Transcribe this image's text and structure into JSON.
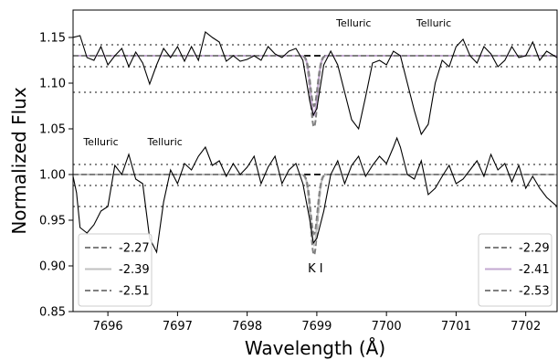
{
  "chart_data": {
    "type": "line",
    "xlabel": "Wavelength (Å)",
    "ylabel": "Normalized Flux",
    "xlim": [
      7695.5,
      7702.45
    ],
    "ylim": [
      0.85,
      1.18
    ],
    "x_ticks": [
      7696,
      7697,
      7698,
      7699,
      7700,
      7701,
      7702
    ],
    "x_tick_labels": [
      "7696",
      "7697",
      "7698",
      "7699",
      "7700",
      "7701",
      "7702"
    ],
    "y_ticks": [
      0.85,
      0.9,
      0.95,
      1.0,
      1.05,
      1.1,
      1.15
    ],
    "y_tick_labels": [
      "0.85",
      "0.90",
      "0.95",
      "1.00",
      "1.05",
      "1.10",
      "1.15"
    ],
    "annotations": [
      {
        "text": "Telluric",
        "x": 7699.53,
        "y": 1.162
      },
      {
        "text": "Telluric",
        "x": 7700.68,
        "y": 1.162
      },
      {
        "text": "Telluric",
        "x": 7695.9,
        "y": 1.032
      },
      {
        "text": "Telluric",
        "x": 7696.82,
        "y": 1.032
      },
      {
        "text": "K I",
        "x": 7698.98,
        "y": 0.893
      }
    ],
    "line_center": 7698.96,
    "upper_spectrum": {
      "continuum": 1.13,
      "dotted_levels": [
        1.142,
        1.118,
        1.09
      ],
      "points": [
        [
          7695.5,
          1.15
        ],
        [
          7695.6,
          1.152
        ],
        [
          7695.7,
          1.128
        ],
        [
          7695.8,
          1.125
        ],
        [
          7695.9,
          1.14
        ],
        [
          7696.0,
          1.12
        ],
        [
          7696.1,
          1.13
        ],
        [
          7696.2,
          1.138
        ],
        [
          7696.3,
          1.118
        ],
        [
          7696.4,
          1.134
        ],
        [
          7696.5,
          1.122
        ],
        [
          7696.6,
          1.099
        ],
        [
          7696.7,
          1.12
        ],
        [
          7696.8,
          1.138
        ],
        [
          7696.9,
          1.128
        ],
        [
          7697.0,
          1.14
        ],
        [
          7697.1,
          1.124
        ],
        [
          7697.2,
          1.14
        ],
        [
          7697.3,
          1.125
        ],
        [
          7697.4,
          1.156
        ],
        [
          7697.5,
          1.15
        ],
        [
          7697.6,
          1.145
        ],
        [
          7697.7,
          1.124
        ],
        [
          7697.8,
          1.13
        ],
        [
          7697.9,
          1.124
        ],
        [
          7698.0,
          1.126
        ],
        [
          7698.1,
          1.13
        ],
        [
          7698.2,
          1.125
        ],
        [
          7698.3,
          1.14
        ],
        [
          7698.4,
          1.132
        ],
        [
          7698.5,
          1.128
        ],
        [
          7698.6,
          1.135
        ],
        [
          7698.7,
          1.138
        ],
        [
          7698.8,
          1.125
        ],
        [
          7698.9,
          1.08
        ],
        [
          7698.95,
          1.065
        ],
        [
          7699.0,
          1.072
        ],
        [
          7699.1,
          1.12
        ],
        [
          7699.2,
          1.135
        ],
        [
          7699.3,
          1.12
        ],
        [
          7699.4,
          1.09
        ],
        [
          7699.5,
          1.06
        ],
        [
          7699.6,
          1.05
        ],
        [
          7699.7,
          1.085
        ],
        [
          7699.8,
          1.122
        ],
        [
          7699.9,
          1.125
        ],
        [
          7700.0,
          1.12
        ],
        [
          7700.1,
          1.135
        ],
        [
          7700.2,
          1.13
        ],
        [
          7700.3,
          1.1
        ],
        [
          7700.4,
          1.07
        ],
        [
          7700.5,
          1.044
        ],
        [
          7700.6,
          1.055
        ],
        [
          7700.7,
          1.1
        ],
        [
          7700.8,
          1.125
        ],
        [
          7700.9,
          1.118
        ],
        [
          7701.0,
          1.14
        ],
        [
          7701.1,
          1.148
        ],
        [
          7701.2,
          1.13
        ],
        [
          7701.3,
          1.122
        ],
        [
          7701.4,
          1.14
        ],
        [
          7701.5,
          1.132
        ],
        [
          7701.6,
          1.118
        ],
        [
          7701.7,
          1.125
        ],
        [
          7701.8,
          1.14
        ],
        [
          7701.9,
          1.128
        ],
        [
          7702.0,
          1.13
        ],
        [
          7702.1,
          1.145
        ],
        [
          7702.2,
          1.125
        ],
        [
          7702.3,
          1.135
        ],
        [
          7702.45,
          1.128
        ]
      ],
      "models": [
        {
          "name": "-2.29",
          "style": "dashed",
          "color": "#808080",
          "depth": 0.078
        },
        {
          "name": "-2.41",
          "style": "solid",
          "color": "#c3a8d1",
          "depth": 0.065
        },
        {
          "name": "-2.53",
          "style": "dashed",
          "color": "#808080",
          "depth": 0.055
        }
      ]
    },
    "lower_spectrum": {
      "continuum": 1.0,
      "dotted_levels": [
        1.011,
        0.988,
        0.965
      ],
      "points": [
        [
          7695.5,
          0.998
        ],
        [
          7695.55,
          0.98
        ],
        [
          7695.6,
          0.942
        ],
        [
          7695.7,
          0.936
        ],
        [
          7695.8,
          0.945
        ],
        [
          7695.9,
          0.96
        ],
        [
          7696.0,
          0.965
        ],
        [
          7696.1,
          1.01
        ],
        [
          7696.2,
          1.0
        ],
        [
          7696.3,
          1.022
        ],
        [
          7696.4,
          0.995
        ],
        [
          7696.5,
          0.99
        ],
        [
          7696.6,
          0.93
        ],
        [
          7696.7,
          0.915
        ],
        [
          7696.8,
          0.97
        ],
        [
          7696.9,
          1.005
        ],
        [
          7697.0,
          0.99
        ],
        [
          7697.1,
          1.012
        ],
        [
          7697.2,
          1.005
        ],
        [
          7697.3,
          1.02
        ],
        [
          7697.4,
          1.03
        ],
        [
          7697.5,
          1.01
        ],
        [
          7697.6,
          1.015
        ],
        [
          7697.7,
          0.998
        ],
        [
          7697.8,
          1.012
        ],
        [
          7697.9,
          1.0
        ],
        [
          7698.0,
          1.008
        ],
        [
          7698.1,
          1.02
        ],
        [
          7698.2,
          0.99
        ],
        [
          7698.3,
          1.008
        ],
        [
          7698.4,
          1.02
        ],
        [
          7698.5,
          0.99
        ],
        [
          7698.6,
          1.005
        ],
        [
          7698.7,
          1.012
        ],
        [
          7698.8,
          0.99
        ],
        [
          7698.9,
          0.95
        ],
        [
          7698.95,
          0.925
        ],
        [
          7699.0,
          0.93
        ],
        [
          7699.1,
          0.96
        ],
        [
          7699.2,
          1.0
        ],
        [
          7699.3,
          1.015
        ],
        [
          7699.4,
          0.99
        ],
        [
          7699.5,
          1.01
        ],
        [
          7699.6,
          1.02
        ],
        [
          7699.7,
          0.998
        ],
        [
          7699.8,
          1.01
        ],
        [
          7699.9,
          1.02
        ],
        [
          7700.0,
          1.012
        ],
        [
          7700.1,
          1.03
        ],
        [
          7700.15,
          1.04
        ],
        [
          7700.2,
          1.03
        ],
        [
          7700.3,
          1.0
        ],
        [
          7700.4,
          0.995
        ],
        [
          7700.5,
          1.015
        ],
        [
          7700.6,
          0.978
        ],
        [
          7700.7,
          0.985
        ],
        [
          7700.8,
          0.998
        ],
        [
          7700.9,
          1.01
        ],
        [
          7701.0,
          0.99
        ],
        [
          7701.1,
          0.995
        ],
        [
          7701.2,
          1.005
        ],
        [
          7701.3,
          1.015
        ],
        [
          7701.4,
          0.998
        ],
        [
          7701.5,
          1.022
        ],
        [
          7701.6,
          1.005
        ],
        [
          7701.7,
          1.012
        ],
        [
          7701.8,
          0.992
        ],
        [
          7701.9,
          1.01
        ],
        [
          7702.0,
          0.985
        ],
        [
          7702.1,
          0.998
        ],
        [
          7702.2,
          0.985
        ],
        [
          7702.3,
          0.975
        ],
        [
          7702.45,
          0.965
        ]
      ],
      "models": [
        {
          "name": "-2.27",
          "style": "dashed",
          "color": "#808080",
          "depth": 0.088
        },
        {
          "name": "-2.39",
          "style": "solid",
          "color": "#c0c0c0",
          "depth": 0.077
        },
        {
          "name": "-2.51",
          "style": "dashed",
          "color": "#808080",
          "depth": 0.065
        }
      ]
    },
    "legends": [
      {
        "placement": "lower-left",
        "entries": [
          {
            "label": "-2.27",
            "style": "dashed",
            "color": "#808080"
          },
          {
            "label": "-2.39",
            "style": "solid",
            "color": "#c0c0c0"
          },
          {
            "label": "-2.51",
            "style": "dashed",
            "color": "#808080"
          }
        ]
      },
      {
        "placement": "lower-right",
        "entries": [
          {
            "label": "-2.29",
            "style": "dashed",
            "color": "#808080"
          },
          {
            "label": "-2.41",
            "style": "solid",
            "color": "#c3a8d1"
          },
          {
            "label": "-2.53",
            "style": "dashed",
            "color": "#808080"
          }
        ]
      }
    ]
  }
}
